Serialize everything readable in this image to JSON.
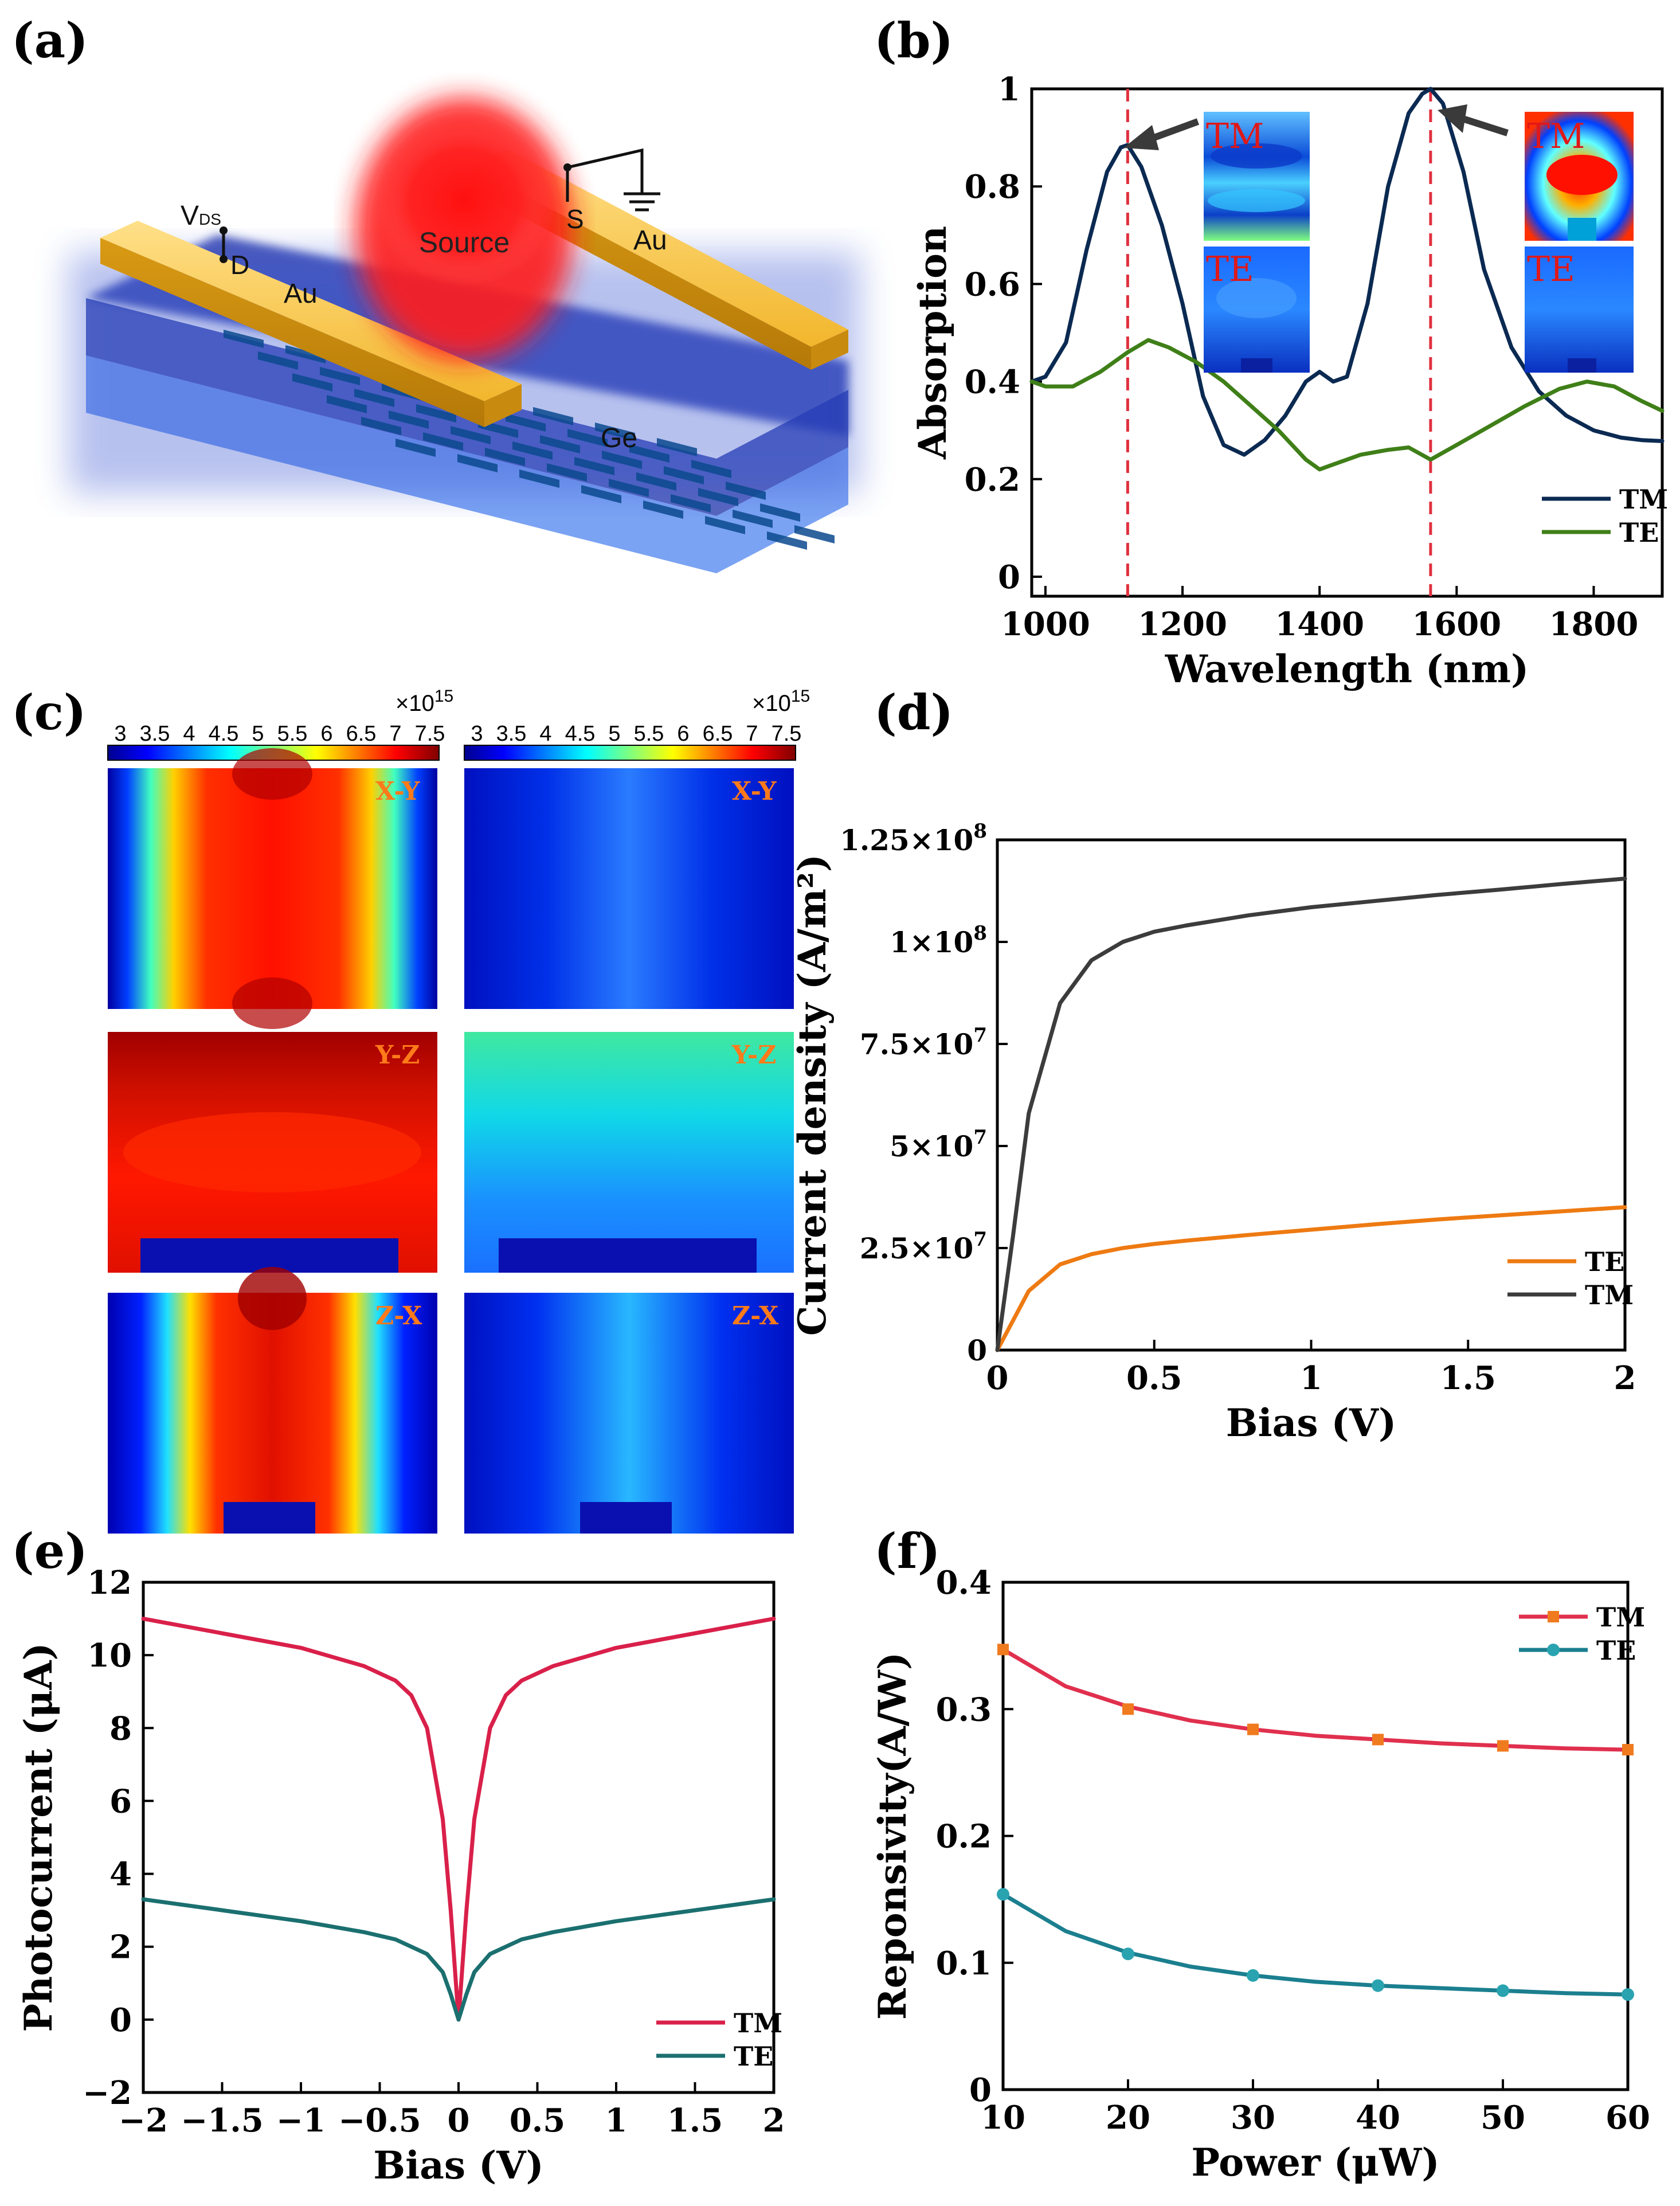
{
  "panels": {
    "a": {
      "label": "(a)",
      "labels": {
        "vds": "V",
        "vds_sub": "DS",
        "d": "D",
        "s": "S",
        "au_left": "Au",
        "au_right": "Au",
        "source": "Source",
        "ge": "Ge"
      }
    },
    "b": {
      "label": "(b)",
      "inset_tm": "TM",
      "inset_te": "TE",
      "chart": {
        "type": "line",
        "xlabel": "Wavelength  (nm)",
        "ylabel": "Absorption",
        "xlim": [
          980,
          1900
        ],
        "ylim": [
          -0.04,
          1.0
        ],
        "xticks": [
          1000,
          1200,
          1400,
          1600,
          1800
        ],
        "yticks": [
          0,
          0.2,
          0.4,
          0.6,
          0.8,
          1
        ],
        "vlines": [
          1120,
          1562
        ],
        "series": [
          {
            "name": "TM",
            "color": "#0b2a52",
            "x": [
              980,
              1000,
              1030,
              1060,
              1090,
              1110,
              1120,
              1140,
              1170,
              1200,
              1230,
              1260,
              1290,
              1320,
              1350,
              1380,
              1400,
              1420,
              1440,
              1470,
              1500,
              1530,
              1550,
              1562,
              1580,
              1610,
              1640,
              1680,
              1720,
              1760,
              1800,
              1840,
              1870,
              1900
            ],
            "y": [
              0.4,
              0.41,
              0.48,
              0.67,
              0.83,
              0.88,
              0.885,
              0.84,
              0.72,
              0.56,
              0.37,
              0.27,
              0.25,
              0.28,
              0.33,
              0.4,
              0.42,
              0.4,
              0.41,
              0.56,
              0.8,
              0.95,
              0.99,
              1.0,
              0.97,
              0.83,
              0.63,
              0.47,
              0.38,
              0.33,
              0.3,
              0.285,
              0.28,
              0.278
            ]
          },
          {
            "name": "TE",
            "color": "#3f7f18",
            "x": [
              980,
              1000,
              1040,
              1080,
              1120,
              1150,
              1180,
              1220,
              1260,
              1300,
              1340,
              1380,
              1400,
              1420,
              1460,
              1500,
              1530,
              1562,
              1600,
              1650,
              1700,
              1750,
              1790,
              1830,
              1870,
              1900
            ],
            "y": [
              0.4,
              0.39,
              0.39,
              0.42,
              0.46,
              0.485,
              0.47,
              0.44,
              0.4,
              0.35,
              0.3,
              0.24,
              0.22,
              0.23,
              0.25,
              0.26,
              0.265,
              0.24,
              0.27,
              0.31,
              0.35,
              0.385,
              0.4,
              0.39,
              0.36,
              0.34
            ]
          }
        ]
      }
    },
    "c": {
      "label": "(c)",
      "cb_ticks": [
        "3",
        "3.5",
        "4",
        "4.5",
        "5",
        "5.5",
        "6",
        "6.5",
        "7",
        "7.5"
      ],
      "cb_exp": "×10",
      "cb_exp_sup": "15",
      "plane_labels": [
        "X-Y",
        "Y-Z",
        "Z-X"
      ]
    },
    "d": {
      "label": "(d)",
      "chart": {
        "type": "line",
        "xlabel": "Bias  (V)",
        "ylabel": "Current density  (A/m²)",
        "xlim": [
          0,
          2
        ],
        "ylim": [
          0,
          125000000
        ],
        "xticks": [
          0,
          0.5,
          1,
          1.5,
          2
        ],
        "xtick_labels": [
          "0",
          "0.5",
          "1",
          "1.5",
          "2"
        ],
        "yticks": [
          0,
          25000000,
          50000000,
          75000000,
          100000000,
          125000000
        ],
        "ytick_labels": [
          {
            "m": "0",
            "e": ""
          },
          {
            "m": "2.5×10",
            "e": "7"
          },
          {
            "m": "5×10",
            "e": "7"
          },
          {
            "m": "7.5×10",
            "e": "7"
          },
          {
            "m": "1×10",
            "e": "8"
          },
          {
            "m": "1.25×10",
            "e": "8"
          }
        ],
        "series": [
          {
            "name": "TE",
            "color": "#ee7a12",
            "x": [
              0,
              0.1,
              0.2,
              0.3,
              0.4,
              0.5,
              0.6,
              0.8,
              1.0,
              1.2,
              1.4,
              1.6,
              1.8,
              2.0
            ],
            "y": [
              0,
              14500000,
              21000000,
              23500000,
              25000000,
              26000000,
              26800000,
              28200000,
              29500000,
              30800000,
              32000000,
              33000000,
              34000000,
              35000000
            ]
          },
          {
            "name": "TM",
            "color": "#3c3c3c",
            "x": [
              0,
              0.05,
              0.1,
              0.2,
              0.3,
              0.4,
              0.5,
              0.6,
              0.8,
              1.0,
              1.2,
              1.4,
              1.6,
              1.8,
              2.0
            ],
            "y": [
              0,
              28000000,
              58000000,
              85000000,
              95500000,
              100000000,
              102500000,
              104000000,
              106500000,
              108500000,
              110000000,
              111500000,
              112800000,
              114200000,
              115500000
            ]
          }
        ]
      }
    },
    "e": {
      "label": "(e)",
      "chart": {
        "type": "line",
        "xlabel": "Bias  (V)",
        "ylabel": "Photocurrent (μA)",
        "xlim": [
          -2,
          2
        ],
        "ylim": [
          -2,
          12
        ],
        "xticks": [
          -2,
          -1.5,
          -1,
          -0.5,
          0,
          0.5,
          1,
          1.5,
          2
        ],
        "xtick_labels": [
          "−2",
          "−1.5",
          "−1",
          "−0.5",
          "0",
          "0.5",
          "1",
          "1.5",
          "2"
        ],
        "yticks": [
          -2,
          0,
          2,
          4,
          6,
          8,
          10,
          12
        ],
        "ytick_labels": [
          "−2",
          "0",
          "2",
          "4",
          "6",
          "8",
          "10",
          "12"
        ],
        "series": [
          {
            "name": "TM",
            "color": "#d9204a",
            "x": [
              -2,
              -1.5,
              -1,
              -0.6,
              -0.4,
              -0.3,
              -0.2,
              -0.1,
              -0.05,
              0,
              0.05,
              0.1,
              0.2,
              0.3,
              0.4,
              0.6,
              1,
              1.5,
              2
            ],
            "y": [
              11.0,
              10.6,
              10.2,
              9.7,
              9.3,
              8.9,
              8.0,
              5.5,
              3.0,
              0.0,
              3.0,
              5.5,
              8.0,
              8.9,
              9.3,
              9.7,
              10.2,
              10.6,
              11.0
            ]
          },
          {
            "name": "TE",
            "color": "#1b6f6f",
            "x": [
              -2,
              -1.5,
              -1,
              -0.6,
              -0.4,
              -0.3,
              -0.2,
              -0.1,
              -0.05,
              0,
              0.05,
              0.1,
              0.2,
              0.3,
              0.4,
              0.6,
              1,
              1.5,
              2
            ],
            "y": [
              3.3,
              3.0,
              2.7,
              2.4,
              2.2,
              2.0,
              1.8,
              1.3,
              0.7,
              0.0,
              0.7,
              1.3,
              1.8,
              2.0,
              2.2,
              2.4,
              2.7,
              3.0,
              3.3
            ]
          }
        ]
      }
    },
    "f": {
      "label": "(f)",
      "chart": {
        "type": "line",
        "xlabel": "Power  (μW)",
        "ylabel": "Reponsivity(A/W)",
        "xlim": [
          10,
          60
        ],
        "ylim": [
          0,
          0.4
        ],
        "xticks": [
          10,
          20,
          30,
          40,
          50,
          60
        ],
        "yticks": [
          0,
          0.1,
          0.2,
          0.3,
          0.4
        ],
        "ytick_labels": [
          "0",
          "0.1",
          "0.2",
          "0.3",
          "0.4"
        ],
        "series": [
          {
            "name": "TM",
            "color": "#e0304e",
            "marker": "square",
            "marker_color": "#f07a1e",
            "x": [
              10,
              20,
              30,
              40,
              50,
              60
            ],
            "y": [
              0.347,
              0.3,
              0.284,
              0.276,
              0.271,
              0.268
            ],
            "fit_x": [
              10,
              15,
              20,
              25,
              30,
              35,
              40,
              45,
              50,
              55,
              60
            ],
            "fit_y": [
              0.347,
              0.318,
              0.302,
              0.291,
              0.284,
              0.279,
              0.276,
              0.273,
              0.271,
              0.269,
              0.268
            ]
          },
          {
            "name": "TE",
            "color": "#1b7f8f",
            "marker": "circle",
            "marker_color": "#2aa3b0",
            "x": [
              10,
              20,
              30,
              40,
              50,
              60
            ],
            "y": [
              0.154,
              0.107,
              0.09,
              0.082,
              0.078,
              0.075
            ],
            "fit_x": [
              10,
              15,
              20,
              25,
              30,
              35,
              40,
              45,
              50,
              55,
              60
            ],
            "fit_y": [
              0.154,
              0.125,
              0.108,
              0.097,
              0.09,
              0.085,
              0.082,
              0.08,
              0.078,
              0.076,
              0.075
            ]
          }
        ]
      }
    }
  }
}
